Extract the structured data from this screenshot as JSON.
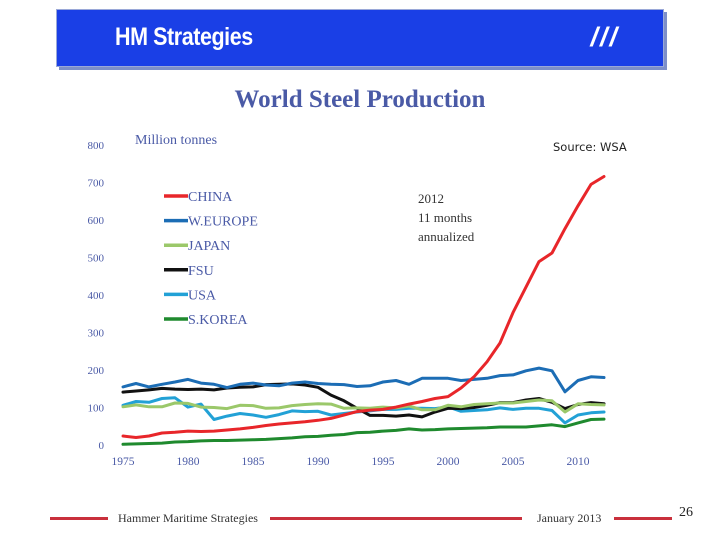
{
  "header": {
    "title": "HM Strategies",
    "mark": "///"
  },
  "footer": {
    "company": "Hammer Maritime Strategies",
    "date": "January 2013",
    "page": "26"
  },
  "colors": {
    "banner": "#1a3fe6",
    "title": "#4a5aa6",
    "footer_line": "#c9303c"
  },
  "chart_data": {
    "type": "line",
    "title": "World Steel Production",
    "ylabel": "Million tonnes",
    "xlabel": "",
    "source": "Source: WSA",
    "annotation": [
      "2012",
      "11 months",
      "annualized"
    ],
    "xlim": [
      1975,
      2012
    ],
    "ylim": [
      0,
      800
    ],
    "x_ticks": [
      1975,
      1980,
      1985,
      1990,
      1995,
      2000,
      2005,
      2010
    ],
    "y_ticks": [
      0,
      100,
      200,
      300,
      400,
      500,
      600,
      700,
      800
    ],
    "legend_position": "top-left",
    "x": [
      1975,
      1976,
      1977,
      1978,
      1979,
      1980,
      1981,
      1982,
      1983,
      1984,
      1985,
      1986,
      1987,
      1988,
      1989,
      1990,
      1991,
      1992,
      1993,
      1994,
      1995,
      1996,
      1997,
      1998,
      1999,
      2000,
      2001,
      2002,
      2003,
      2004,
      2005,
      2006,
      2007,
      2008,
      2009,
      2010,
      2011,
      2012
    ],
    "series": [
      {
        "name": "CHINA",
        "color": "#e8262a",
        "values": [
          24,
          20,
          24,
          32,
          34,
          37,
          36,
          37,
          40,
          43,
          47,
          52,
          56,
          59,
          62,
          66,
          71,
          80,
          89,
          93,
          95,
          101,
          109,
          116,
          124,
          129,
          152,
          182,
          222,
          272,
          353,
          421,
          489,
          512,
          577,
          638,
          695,
          716
        ]
      },
      {
        "name": "W.EUROPE",
        "color": "#1c6db5",
        "values": [
          155,
          164,
          155,
          162,
          168,
          175,
          165,
          162,
          153,
          162,
          165,
          160,
          158,
          165,
          168,
          164,
          162,
          161,
          156,
          158,
          168,
          172,
          162,
          178,
          178,
          178,
          172,
          175,
          178,
          185,
          187,
          198,
          205,
          198,
          142,
          172,
          182,
          180
        ]
      },
      {
        "name": "JAPAN",
        "color": "#9bc86a",
        "values": [
          102,
          107,
          102,
          102,
          112,
          111,
          101,
          100,
          97,
          106,
          105,
          98,
          99,
          105,
          108,
          110,
          109,
          98,
          99,
          98,
          101,
          99,
          104,
          94,
          94,
          106,
          102,
          108,
          110,
          112,
          112,
          116,
          120,
          118,
          88,
          110,
          108,
          107
        ]
      },
      {
        "name": "FSU",
        "color": "#111111",
        "values": [
          141,
          144,
          147,
          151,
          149,
          148,
          149,
          147,
          152,
          154,
          155,
          161,
          162,
          163,
          160,
          154,
          133,
          118,
          98,
          79,
          79,
          77,
          80,
          75,
          88,
          98,
          97,
          100,
          106,
          113,
          113,
          120,
          124,
          114,
          97,
          108,
          113,
          110
        ]
      },
      {
        "name": "USA",
        "color": "#22a1d6",
        "values": [
          106,
          116,
          114,
          124,
          126,
          101,
          109,
          68,
          77,
          84,
          80,
          74,
          81,
          91,
          89,
          90,
          80,
          84,
          88,
          91,
          95,
          95,
          98,
          98,
          97,
          102,
          90,
          92,
          94,
          99,
          95,
          98,
          98,
          92,
          59,
          80,
          86,
          88
        ]
      },
      {
        "name": "S.KOREA",
        "color": "#1f8a2e",
        "values": [
          2,
          3,
          4,
          5,
          8,
          9,
          11,
          12,
          12,
          13,
          14,
          15,
          17,
          19,
          22,
          23,
          26,
          28,
          33,
          34,
          37,
          39,
          43,
          40,
          41,
          43,
          44,
          45,
          46,
          48,
          48,
          48,
          51,
          54,
          49,
          59,
          68,
          69
        ]
      }
    ]
  }
}
